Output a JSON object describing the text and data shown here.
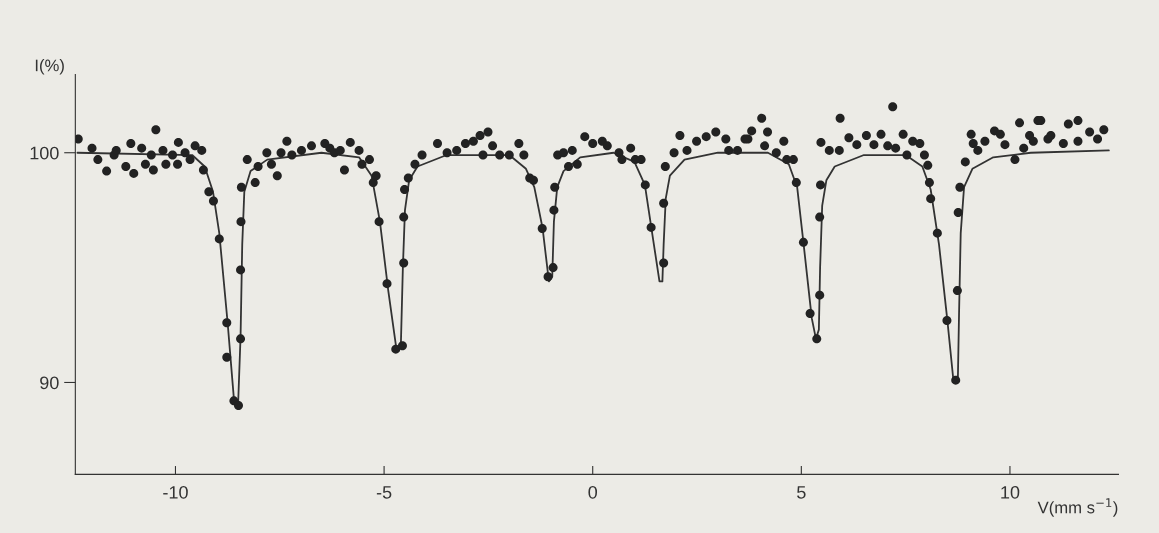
{
  "chart_data": {
    "type": "scatter",
    "xlabel": "V(mm s$^{−1}$)",
    "ylabel": "I(%)",
    "xlim": [
      -12.4,
      12.6
    ],
    "ylim": [
      86,
      103.4
    ],
    "xticks": [
      -10,
      -5,
      0,
      5,
      10
    ],
    "yticks": [
      100,
      90
    ],
    "grid": false,
    "legend": false,
    "series": [
      {
        "marker": "circle",
        "color": "#222222",
        "x": [
          -12.33,
          -12.0,
          -11.86,
          -11.65,
          -11.47,
          -11.42,
          -11.19,
          -11.07,
          -11.0,
          -10.81,
          -10.72,
          -10.58,
          -10.53,
          -10.47,
          -10.3,
          -10.23,
          -10.07,
          -9.95,
          -9.93,
          -9.77,
          -9.65,
          -9.53,
          -9.37,
          -9.33,
          -9.2,
          -9.09,
          -8.95,
          -8.77,
          -8.77,
          -8.6,
          -8.49,
          -8.44,
          -8.44,
          -8.43,
          -8.42,
          -8.28,
          -8.09,
          -8.02,
          -7.81,
          -7.7,
          -7.56,
          -7.47,
          -7.33,
          -7.21,
          -6.98,
          -6.74,
          -6.42,
          -6.3,
          -6.19,
          -6.05,
          -5.95,
          -5.81,
          -5.6,
          -5.53,
          -5.35,
          -5.26,
          -5.19,
          -5.12,
          -4.93,
          -4.72,
          -4.56,
          -4.53,
          -4.53,
          -4.51,
          -4.42,
          -4.26,
          -4.09,
          -3.72,
          -3.49,
          -3.26,
          -3.05,
          -2.86,
          -2.7,
          -2.63,
          -2.51,
          -2.4,
          -2.23,
          -2.0,
          -1.77,
          -1.65,
          -1.51,
          -1.42,
          -1.21,
          -1.07,
          -0.95,
          -0.93,
          -0.91,
          -0.84,
          -0.7,
          -0.58,
          -0.49,
          -0.37,
          -0.19,
          0.0,
          0.23,
          0.35,
          0.63,
          0.7,
          0.91,
          1.02,
          1.16,
          1.26,
          1.4,
          1.7,
          1.7,
          1.74,
          1.95,
          2.09,
          2.26,
          2.49,
          2.72,
          2.95,
          3.19,
          3.26,
          3.47,
          3.65,
          3.72,
          3.81,
          4.05,
          4.12,
          4.19,
          4.4,
          4.58,
          4.65,
          4.81,
          4.88,
          5.05,
          5.21,
          5.37,
          5.44,
          5.44,
          5.46,
          5.47,
          5.67,
          5.91,
          5.93,
          6.14,
          6.33,
          6.56,
          6.74,
          6.91,
          7.07,
          7.19,
          7.26,
          7.44,
          7.53,
          7.67,
          7.84,
          7.95,
          8.03,
          8.07,
          8.1,
          8.26,
          8.49,
          8.7,
          8.74,
          8.76,
          8.8,
          8.93,
          9.07,
          9.12,
          9.23,
          9.4,
          9.63,
          9.77,
          9.88,
          10.12,
          10.23,
          10.33,
          10.47,
          10.56,
          10.67,
          10.74,
          10.91,
          10.98,
          11.28,
          11.4,
          11.63,
          11.63,
          11.91,
          12.1,
          12.25
        ],
        "values": [
          100.6,
          100.2,
          99.7,
          99.2,
          99.9,
          100.1,
          99.4,
          100.4,
          99.1,
          100.2,
          99.5,
          99.9,
          99.25,
          101.0,
          100.1,
          99.5,
          99.9,
          99.5,
          100.45,
          100.0,
          99.7,
          100.3,
          100.1,
          99.25,
          98.3,
          97.9,
          96.25,
          92.6,
          91.1,
          89.2,
          89.0,
          91.9,
          94.9,
          97.0,
          98.5,
          99.7,
          98.7,
          99.4,
          100.0,
          99.5,
          99.0,
          100.0,
          100.5,
          99.9,
          100.1,
          100.3,
          100.4,
          100.2,
          100.0,
          100.1,
          99.25,
          100.45,
          100.1,
          99.5,
          99.7,
          98.7,
          99.0,
          97.0,
          94.3,
          91.45,
          91.6,
          95.2,
          97.2,
          98.4,
          98.9,
          99.5,
          99.9,
          100.4,
          100.0,
          100.1,
          100.4,
          100.5,
          100.75,
          99.9,
          100.9,
          100.3,
          99.9,
          99.9,
          100.4,
          99.9,
          98.9,
          98.8,
          96.7,
          94.6,
          95.0,
          97.5,
          98.5,
          99.9,
          100.0,
          99.4,
          100.1,
          99.5,
          100.7,
          100.4,
          100.5,
          100.3,
          100.0,
          99.7,
          100.2,
          99.7,
          99.7,
          98.6,
          96.75,
          95.2,
          97.8,
          99.4,
          100.0,
          100.75,
          100.1,
          100.5,
          100.7,
          100.9,
          100.6,
          100.1,
          100.1,
          100.6,
          100.6,
          100.95,
          101.5,
          100.3,
          100.9,
          100.0,
          100.5,
          99.7,
          99.7,
          98.7,
          96.1,
          93.0,
          91.9,
          93.8,
          97.2,
          98.6,
          100.45,
          100.1,
          100.1,
          101.5,
          100.65,
          100.35,
          100.75,
          100.35,
          100.8,
          100.3,
          102.0,
          100.2,
          100.8,
          99.9,
          100.5,
          100.4,
          99.9,
          99.45,
          98.7,
          98.0,
          96.5,
          92.7,
          90.1,
          94.0,
          97.4,
          98.5,
          99.6,
          100.8,
          100.4,
          100.1,
          100.5,
          100.95,
          100.8,
          100.35,
          99.7,
          101.3,
          100.2,
          100.75,
          100.5,
          101.4,
          101.4,
          100.6,
          100.75,
          100.4,
          101.25,
          101.4,
          100.5,
          100.9,
          100.6,
          101.0
        ]
      },
      {
        "type": "line",
        "marker": "none",
        "line_style": "solid",
        "color": "#333333",
        "x": [
          -12.35,
          -9.6,
          -9.3,
          -9.1,
          -8.95,
          -8.75,
          -8.6,
          -8.5,
          -8.44,
          -8.4,
          -8.35,
          -8.2,
          -7.8,
          -6.5,
          -5.6,
          -5.3,
          -5.1,
          -4.9,
          -4.7,
          -4.6,
          -4.55,
          -4.5,
          -4.4,
          -4.2,
          -3.5,
          -2.0,
          -1.6,
          -1.4,
          -1.2,
          -1.05,
          -0.97,
          -0.93,
          -0.85,
          -0.7,
          -0.3,
          0.5,
          1.0,
          1.25,
          1.45,
          1.6,
          1.67,
          1.7,
          1.75,
          1.85,
          2.2,
          3.0,
          4.2,
          4.7,
          4.9,
          5.05,
          5.25,
          5.35,
          5.42,
          5.45,
          5.5,
          5.6,
          5.8,
          6.5,
          7.5,
          7.9,
          8.1,
          8.3,
          8.5,
          8.65,
          8.75,
          8.78,
          8.82,
          8.9,
          9.1,
          9.6,
          10.5,
          12.37
        ],
        "values": [
          100.0,
          99.9,
          99.4,
          98.3,
          96.5,
          92.6,
          89.3,
          89.0,
          92.0,
          96.0,
          98.3,
          99.2,
          99.7,
          100.0,
          99.8,
          99.0,
          97.0,
          94.0,
          91.4,
          91.5,
          95.0,
          97.5,
          98.8,
          99.4,
          99.9,
          99.9,
          99.3,
          98.5,
          96.7,
          94.4,
          94.6,
          97.0,
          98.5,
          99.2,
          99.8,
          100.0,
          99.6,
          98.6,
          96.2,
          94.4,
          94.4,
          96.0,
          98.0,
          99.0,
          99.7,
          100.0,
          100.0,
          99.5,
          98.5,
          96.1,
          92.8,
          91.9,
          92.3,
          95.0,
          97.7,
          98.8,
          99.4,
          99.9,
          99.9,
          99.4,
          98.4,
          96.0,
          92.7,
          90.0,
          90.0,
          93.0,
          96.5,
          98.5,
          99.3,
          99.8,
          100.0,
          100.1
        ]
      }
    ]
  }
}
